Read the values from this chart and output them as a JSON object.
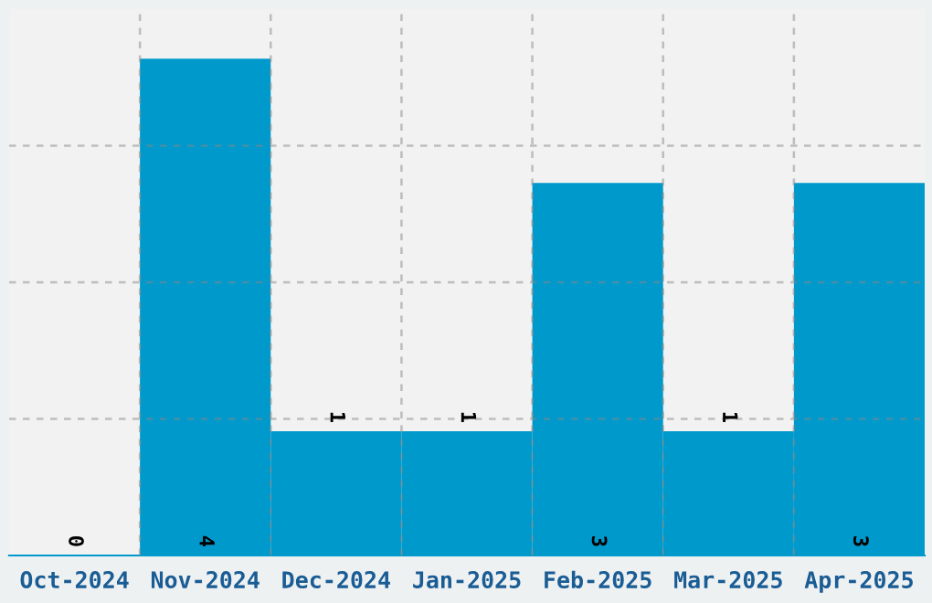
{
  "chart_data": {
    "type": "bar",
    "categories": [
      "Oct-2024",
      "Nov-2024",
      "Dec-2024",
      "Jan-2025",
      "Feb-2025",
      "Mar-2025",
      "Apr-2025"
    ],
    "values": [
      0,
      4,
      1,
      1,
      3,
      1,
      3
    ],
    "color": "#0099cc",
    "ylim": [
      0,
      4.4
    ],
    "yticks": [
      {
        "value": 1.1,
        "label": null
      },
      {
        "value": 2.2,
        "label": null
      },
      {
        "value": 3.3,
        "label": null
      }
    ],
    "tick_labels": "x",
    "data_labels": true,
    "grid": true
  }
}
